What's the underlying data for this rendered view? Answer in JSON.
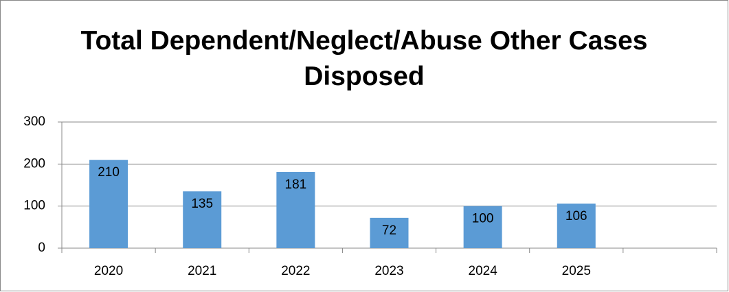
{
  "chart_data": {
    "type": "bar",
    "title": "Total Dependent/Neglect/Abuse Other Cases Disposed",
    "categories": [
      "2020",
      "2021",
      "2022",
      "2023",
      "2024",
      "2025",
      null
    ],
    "values": [
      210,
      135,
      181,
      72,
      100,
      106,
      null
    ],
    "color": "#5b9bd5",
    "ylim": [
      0,
      300
    ],
    "yticks": [
      0,
      100,
      200,
      300
    ],
    "grid": true
  }
}
